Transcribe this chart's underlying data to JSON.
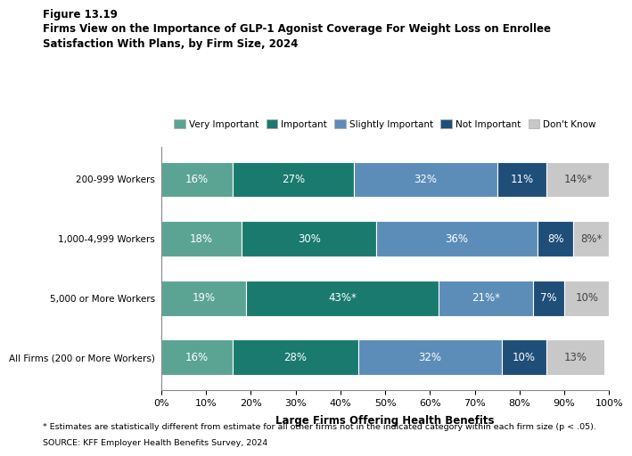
{
  "title_line1": "Figure 13.19",
  "title_line2": "Firms View on the Importance of GLP-1 Agonist Coverage For Weight Loss on Enrollee\nSatisfaction With Plans, by Firm Size, 2024",
  "categories": [
    "200-999 Workers",
    "1,000-4,999 Workers",
    "5,000 or More Workers",
    "All Firms (200 or More Workers)"
  ],
  "segments": [
    "Very Important",
    "Important",
    "Slightly Important",
    "Not Important",
    "Don't Know"
  ],
  "colors": [
    "#5ba494",
    "#1a7a6e",
    "#5b8db8",
    "#1f4e79",
    "#c8c8c8"
  ],
  "values": [
    [
      16,
      27,
      32,
      11,
      14
    ],
    [
      18,
      30,
      36,
      8,
      8
    ],
    [
      19,
      43,
      21,
      7,
      10
    ],
    [
      16,
      28,
      32,
      10,
      13
    ]
  ],
  "labels": [
    [
      "16%",
      "27%",
      "32%",
      "11%",
      "14%*"
    ],
    [
      "18%",
      "30%",
      "36%",
      "8%",
      "8%*"
    ],
    [
      "19%",
      "43%*",
      "21%*",
      "7%",
      "10%"
    ],
    [
      "16%",
      "28%",
      "32%",
      "10%",
      "13%"
    ]
  ],
  "xlabel": "Large Firms Offering Health Benefits",
  "footnote1": "* Estimates are statistically different from estimate for all other firms not in the indicated category within each firm size (p < .05).",
  "footnote2": "SOURCE: KFF Employer Health Benefits Survey, 2024",
  "bg_color": "#ffffff",
  "text_colors": [
    "white",
    "white",
    "white",
    "white",
    "#444444"
  ]
}
